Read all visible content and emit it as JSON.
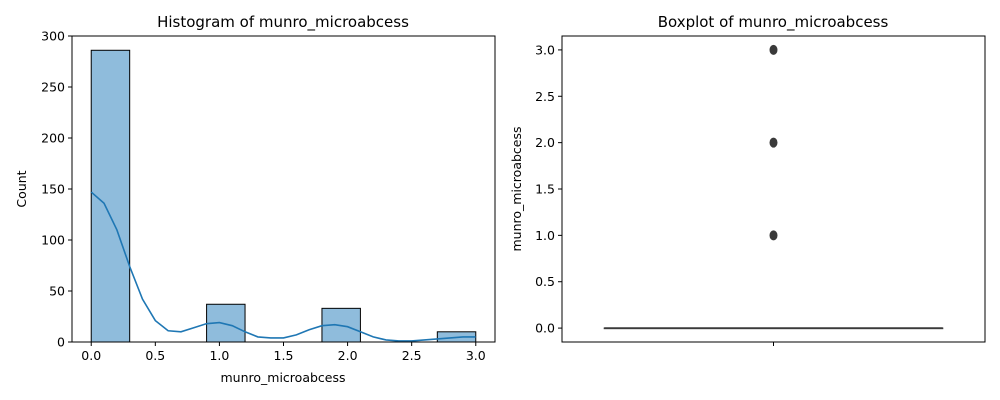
{
  "chart_data": [
    {
      "type": "bar",
      "subtype": "histogram-with-kde",
      "title": "Histogram of munro_microabcess",
      "xlabel": "munro_microabcess",
      "ylabel": "Count",
      "xlim": [
        -0.15,
        3.15
      ],
      "ylim": [
        0,
        300
      ],
      "xticks": [
        0.0,
        0.5,
        1.0,
        1.5,
        2.0,
        2.5,
        3.0
      ],
      "xtick_labels": [
        "0.0",
        "0.5",
        "1.0",
        "1.5",
        "2.0",
        "2.5",
        "3.0"
      ],
      "yticks": [
        0,
        50,
        100,
        150,
        200,
        250,
        300
      ],
      "ytick_labels": [
        "0",
        "50",
        "100",
        "150",
        "200",
        "250",
        "300"
      ],
      "grid": false,
      "bar_color": "#8fbcdc",
      "bar_edge_color": "#000000",
      "kde_color": "#1f77b4",
      "bins": [
        {
          "x0": 0.0,
          "x1": 0.3,
          "count": 286
        },
        {
          "x0": 0.9,
          "x1": 1.2,
          "count": 37
        },
        {
          "x0": 1.8,
          "x1": 2.1,
          "count": 33
        },
        {
          "x0": 2.7,
          "x1": 3.0,
          "count": 10
        }
      ],
      "kde": {
        "x": [
          0.0,
          0.1,
          0.2,
          0.3,
          0.4,
          0.5,
          0.6,
          0.7,
          0.8,
          0.9,
          1.0,
          1.1,
          1.2,
          1.3,
          1.4,
          1.5,
          1.6,
          1.7,
          1.8,
          1.9,
          2.0,
          2.1,
          2.2,
          2.3,
          2.4,
          2.5,
          2.6,
          2.7,
          2.8,
          2.9,
          3.0
        ],
        "y": [
          147,
          136,
          110,
          74,
          42,
          21,
          11,
          10,
          14,
          18,
          19,
          16,
          10,
          5,
          4,
          4,
          7,
          12,
          16,
          17,
          15,
          10,
          5,
          2,
          1,
          1,
          2,
          3,
          4,
          5,
          5
        ]
      }
    },
    {
      "type": "box",
      "title": "Boxplot of munro_microabcess",
      "xlabel": "",
      "ylabel": "munro_microabcess",
      "ylim": [
        -0.15,
        3.15
      ],
      "yticks": [
        0.0,
        0.5,
        1.0,
        1.5,
        2.0,
        2.5,
        3.0
      ],
      "ytick_labels": [
        "0.0",
        "0.5",
        "1.0",
        "1.5",
        "2.0",
        "2.5",
        "3.0"
      ],
      "grid": false,
      "box_color": "#3a3a3a",
      "stats": {
        "min": 0.0,
        "q1": 0.0,
        "median": 0.0,
        "q3": 0.0,
        "max": 0.0
      },
      "outliers": [
        1.0,
        2.0,
        3.0
      ]
    }
  ]
}
